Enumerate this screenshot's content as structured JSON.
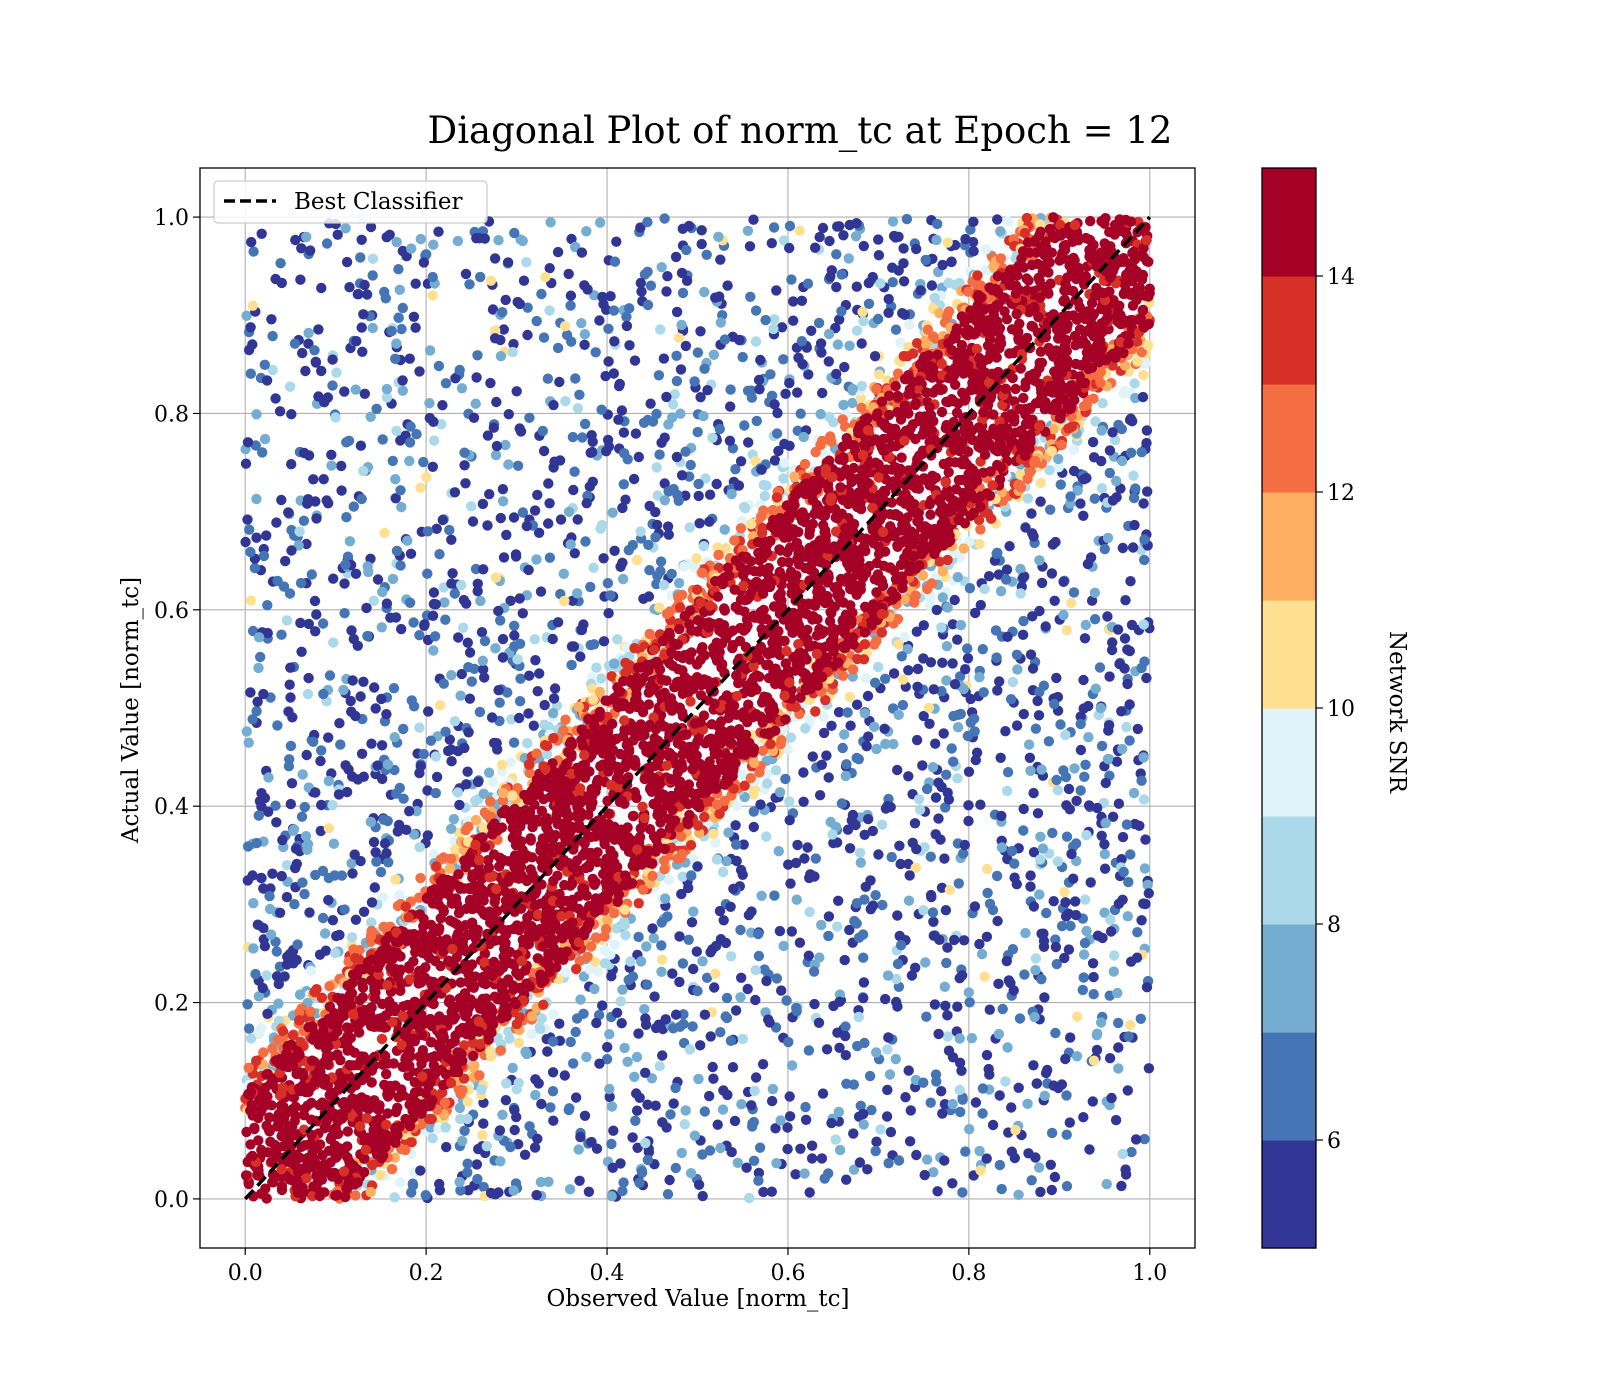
{
  "chart_data": {
    "type": "scatter",
    "title": "Diagonal Plot of norm_tc at Epoch = 12",
    "xlabel": "Observed Value [norm_tc]",
    "ylabel": "Actual Value [norm_tc]",
    "xlim": [
      -0.05,
      1.05
    ],
    "ylim": [
      -0.05,
      1.05
    ],
    "xticks": [
      "0.0",
      "0.2",
      "0.4",
      "0.6",
      "0.8",
      "1.0"
    ],
    "yticks": [
      "0.0",
      "0.2",
      "0.4",
      "0.6",
      "0.8",
      "1.0"
    ],
    "grid": true,
    "legend": {
      "placement": "upper-left",
      "entries": [
        "Best Classifier"
      ]
    },
    "reference_line": {
      "name": "Best Classifier",
      "x": [
        0.0,
        1.0
      ],
      "y": [
        0.0,
        1.0
      ],
      "style": "dashed",
      "color": "#000000"
    },
    "colorbar": {
      "label": "Network SNR",
      "range": [
        5,
        15
      ],
      "ticks": [
        "6",
        "8",
        "10",
        "12",
        "14"
      ],
      "colors": [
        "#313695",
        "#4575b4",
        "#74add1",
        "#abd9e9",
        "#e0f3f8",
        "#fee090",
        "#fdae61",
        "#f46d43",
        "#d73027",
        "#a50026"
      ]
    },
    "note_on_points": "Dense cloud of scatter points colored by Network SNR; high-SNR (red, >14) points lie within about ±0.12 of the diagonal, lower-SNR (blue) points spread widely off the diagonal."
  }
}
